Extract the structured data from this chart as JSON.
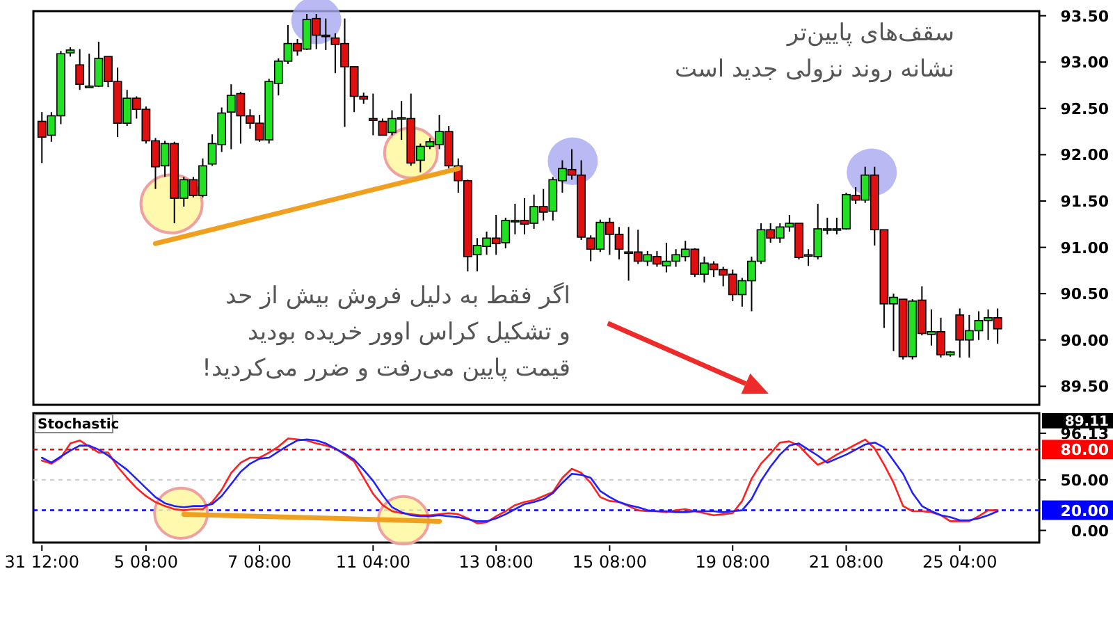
{
  "chart_data": [
    {
      "type": "candlestick",
      "categories": [
        null,
        null,
        null,
        null,
        null,
        null,
        null,
        null,
        null,
        null,
        null,
        null,
        null,
        null,
        null,
        null,
        null,
        null,
        null,
        null,
        null,
        null,
        null,
        null,
        null,
        null,
        null,
        null,
        null,
        null,
        null,
        null,
        null,
        null,
        null,
        null,
        null,
        null,
        null,
        null,
        null,
        null,
        null,
        null,
        null,
        null,
        null,
        null,
        null,
        null,
        null,
        null,
        null,
        null,
        null,
        null,
        null,
        null,
        null,
        null,
        null,
        null,
        null,
        null,
        null,
        null,
        null,
        null,
        null,
        null,
        null,
        null,
        null,
        null,
        null,
        null,
        null,
        null,
        null,
        null,
        null,
        null,
        null,
        null,
        null,
        null,
        null,
        null,
        null,
        null,
        null,
        null,
        null,
        null,
        null,
        null,
        null,
        null,
        null,
        null,
        null,
        null
      ],
      "ohlc": [
        [
          92.36,
          92.46,
          91.91,
          92.19
        ],
        [
          92.21,
          92.46,
          92.14,
          92.42
        ],
        [
          92.42,
          93.12,
          92.33,
          93.09
        ],
        [
          93.1,
          93.16,
          93.06,
          93.13
        ],
        [
          92.97,
          93.14,
          92.7,
          92.76
        ],
        [
          92.74,
          93.09,
          92.74,
          92.74
        ],
        [
          92.74,
          93.22,
          92.73,
          93.04
        ],
        [
          93.06,
          93.06,
          92.73,
          92.79
        ],
        [
          92.79,
          92.94,
          92.19,
          92.34
        ],
        [
          92.34,
          92.7,
          92.31,
          92.61
        ],
        [
          92.61,
          92.63,
          92.39,
          92.49
        ],
        [
          92.49,
          92.52,
          92.12,
          92.15
        ],
        [
          92.15,
          92.18,
          91.63,
          91.87
        ],
        [
          91.88,
          92.15,
          91.76,
          92.12
        ],
        [
          92.12,
          92.14,
          91.26,
          91.53
        ],
        [
          91.53,
          91.76,
          91.44,
          91.73
        ],
        [
          91.73,
          91.76,
          91.54,
          91.56
        ],
        [
          91.56,
          91.96,
          91.54,
          91.88
        ],
        [
          91.9,
          92.22,
          91.88,
          92.12
        ],
        [
          92.11,
          92.51,
          92.03,
          92.45
        ],
        [
          92.46,
          92.76,
          92.06,
          92.64
        ],
        [
          92.66,
          92.68,
          92.12,
          92.42
        ],
        [
          92.42,
          92.49,
          92.28,
          92.34
        ],
        [
          92.34,
          92.43,
          92.14,
          92.16
        ],
        [
          92.16,
          92.82,
          92.12,
          92.79
        ],
        [
          92.77,
          93.04,
          92.64,
          93.01
        ],
        [
          93.01,
          93.4,
          92.98,
          93.2
        ],
        [
          93.2,
          93.25,
          93.07,
          93.12
        ],
        [
          93.14,
          93.52,
          93.13,
          93.46
        ],
        [
          93.47,
          93.52,
          93.14,
          93.29
        ],
        [
          93.29,
          93.47,
          93.13,
          93.28
        ],
        [
          93.26,
          93.31,
          92.88,
          93.19
        ],
        [
          93.2,
          93.47,
          92.3,
          92.95
        ],
        [
          92.95,
          92.95,
          92.46,
          92.63
        ],
        [
          92.63,
          92.67,
          92.55,
          92.6
        ],
        [
          92.39,
          92.66,
          92.21,
          92.37
        ],
        [
          92.36,
          92.39,
          92.21,
          92.21
        ],
        [
          92.24,
          92.48,
          92.21,
          92.39
        ],
        [
          92.4,
          92.58,
          92.16,
          92.4
        ],
        [
          92.39,
          92.66,
          91.88,
          91.91
        ],
        [
          91.94,
          92.12,
          91.81,
          92.09
        ],
        [
          92.09,
          92.18,
          92.06,
          92.14
        ],
        [
          92.11,
          92.43,
          92.06,
          92.25
        ],
        [
          92.25,
          92.31,
          91.85,
          91.88
        ],
        [
          91.88,
          91.96,
          91.59,
          91.72
        ],
        [
          91.72,
          91.73,
          90.74,
          90.9
        ],
        [
          90.92,
          91.1,
          90.74,
          91.02
        ],
        [
          91.01,
          91.17,
          90.92,
          91.1
        ],
        [
          91.1,
          91.35,
          90.92,
          91.04
        ],
        [
          91.05,
          91.32,
          90.99,
          91.29
        ],
        [
          91.29,
          91.47,
          91.14,
          91.29
        ],
        [
          91.29,
          91.53,
          91.14,
          91.25
        ],
        [
          91.26,
          91.57,
          91.2,
          91.44
        ],
        [
          91.44,
          91.63,
          91.29,
          91.38
        ],
        [
          91.39,
          91.76,
          91.29,
          91.73
        ],
        [
          91.72,
          91.94,
          91.59,
          91.85
        ],
        [
          91.84,
          92.06,
          91.73,
          91.78
        ],
        [
          91.78,
          91.94,
          91.08,
          91.11
        ],
        [
          91.1,
          91.13,
          90.85,
          90.98
        ],
        [
          90.98,
          91.3,
          90.95,
          91.27
        ],
        [
          91.27,
          91.32,
          90.92,
          91.14
        ],
        [
          91.14,
          91.22,
          90.87,
          90.98
        ],
        [
          90.95,
          91.22,
          90.64,
          90.95
        ],
        [
          90.95,
          91.19,
          90.82,
          90.85
        ],
        [
          90.85,
          90.96,
          90.8,
          90.92
        ],
        [
          90.9,
          90.96,
          90.79,
          90.82
        ],
        [
          90.8,
          91.05,
          90.73,
          90.85
        ],
        [
          90.85,
          90.98,
          90.79,
          90.92
        ],
        [
          90.9,
          91.07,
          90.85,
          90.98
        ],
        [
          90.98,
          90.99,
          90.68,
          90.71
        ],
        [
          90.71,
          90.9,
          90.62,
          90.83
        ],
        [
          90.82,
          90.85,
          90.68,
          90.76
        ],
        [
          90.76,
          90.79,
          90.58,
          90.7
        ],
        [
          90.71,
          90.76,
          90.42,
          90.49
        ],
        [
          90.49,
          90.67,
          90.36,
          90.64
        ],
        [
          90.64,
          90.9,
          90.31,
          90.85
        ],
        [
          90.85,
          91.26,
          90.82,
          91.19
        ],
        [
          91.19,
          91.26,
          91.05,
          91.1
        ],
        [
          91.1,
          91.26,
          91.05,
          91.22
        ],
        [
          91.22,
          91.35,
          91.17,
          91.26
        ],
        [
          91.26,
          91.26,
          90.87,
          90.89
        ],
        [
          90.92,
          90.98,
          90.8,
          90.92
        ],
        [
          90.9,
          91.47,
          90.87,
          91.2
        ],
        [
          91.2,
          91.32,
          91.14,
          91.2
        ],
        [
          91.2,
          91.32,
          91.14,
          91.2
        ],
        [
          91.2,
          91.59,
          91.19,
          91.57
        ],
        [
          91.56,
          91.65,
          91.47,
          91.51
        ],
        [
          91.51,
          91.87,
          91.48,
          91.78
        ],
        [
          91.78,
          91.87,
          91.02,
          91.19
        ],
        [
          91.19,
          91.19,
          90.13,
          90.39
        ],
        [
          90.39,
          90.5,
          89.88,
          90.46
        ],
        [
          90.44,
          90.44,
          89.79,
          89.82
        ],
        [
          89.82,
          90.44,
          89.79,
          90.42
        ],
        [
          90.43,
          90.58,
          90.05,
          90.07
        ],
        [
          90.06,
          90.33,
          89.94,
          90.09
        ],
        [
          90.09,
          90.24,
          89.81,
          89.84
        ],
        [
          89.84,
          89.88,
          89.82,
          89.87
        ],
        [
          90.27,
          90.34,
          89.81,
          90.0
        ],
        [
          90.0,
          90.27,
          89.81,
          90.1
        ],
        [
          90.1,
          90.31,
          90.0,
          90.21
        ],
        [
          90.21,
          90.33,
          90.0,
          90.24
        ],
        [
          90.24,
          90.34,
          89.96,
          90.12
        ]
      ],
      "series": [
        {
          "type": "line",
          "color": "#f0a020",
          "values": [
            null,
            null,
            null,
            null,
            null,
            null,
            null,
            null,
            null,
            null,
            null,
            null,
            91.04,
            null,
            null,
            null,
            null,
            null,
            null,
            null,
            null,
            null,
            null,
            null,
            null,
            null,
            null,
            null,
            null,
            null,
            null,
            null,
            null,
            null,
            null,
            null,
            null,
            null,
            null,
            null,
            null,
            null,
            null,
            null,
            91.85,
            null,
            null,
            null,
            null,
            null,
            null,
            null,
            null,
            null,
            null,
            null,
            null,
            null,
            null,
            null,
            null,
            null,
            null,
            null,
            null,
            null,
            null,
            null,
            null,
            null,
            null,
            null,
            null,
            null,
            null,
            null,
            null,
            null,
            null,
            null,
            null,
            null,
            null,
            null,
            null,
            null,
            null,
            null,
            null,
            null,
            null,
            null,
            null,
            null,
            null,
            null,
            null,
            null,
            null,
            null,
            null,
            null
          ]
        }
      ],
      "ylim": [
        89.3,
        93.55
      ],
      "yticks": [
        {
          "value": 89.5,
          "label": "89.50"
        },
        {
          "value": 90,
          "label": "90.00"
        },
        {
          "value": 90.5,
          "label": "90.50"
        },
        {
          "value": 91,
          "label": "91.00"
        },
        {
          "value": 91.5,
          "label": "91.50"
        },
        {
          "value": 92,
          "label": "92.00"
        },
        {
          "value": 92.5,
          "label": "92.50"
        },
        {
          "value": 93,
          "label": "93.00"
        },
        {
          "value": 93.5,
          "label": "93.50"
        }
      ],
      "tick_labels": "y",
      "annotations": [
        "سقف‌های پایین‌تر\nنشانه روند نزولی جدید است",
        "اگر فقط به دلیل فروش بیش از حد\nو تشکیل کراس اوور خریده بودید\nقیمت پایین می‌رفت و ضرر می‌کردید!"
      ]
    },
    {
      "type": "line",
      "title": "Stochastic",
      "categories": [
        "31 12:00",
        null,
        null,
        null,
        null,
        null,
        null,
        null,
        null,
        null,
        null,
        "5 08:00",
        null,
        null,
        null,
        null,
        null,
        null,
        null,
        null,
        null,
        null,
        null,
        "7 08:00",
        null,
        null,
        null,
        null,
        null,
        null,
        null,
        null,
        null,
        null,
        null,
        "11 04:00",
        null,
        null,
        null,
        null,
        null,
        null,
        null,
        null,
        null,
        null,
        null,
        null,
        "13 08:00",
        null,
        null,
        null,
        null,
        null,
        null,
        null,
        null,
        null,
        null,
        null,
        "15 08:00",
        null,
        null,
        null,
        null,
        null,
        null,
        null,
        null,
        null,
        null,
        null,
        null,
        "19 08:00",
        null,
        null,
        null,
        null,
        null,
        null,
        null,
        null,
        null,
        null,
        null,
        "21 08:00",
        null,
        null,
        null,
        null,
        null,
        null,
        null,
        null,
        null,
        null,
        null,
        "25 04:00",
        null,
        null,
        null,
        null
      ],
      "series": [
        {
          "color": "#ff2020",
          "values": [
            69,
            66,
            72,
            86,
            89,
            83,
            77,
            77,
            63,
            52,
            42,
            34,
            28,
            24,
            21,
            20,
            21,
            21,
            28,
            40,
            57,
            67,
            72,
            72,
            77,
            83,
            91,
            90,
            89,
            86,
            84,
            81,
            75,
            68,
            52,
            36,
            25,
            19,
            17,
            16,
            15,
            15,
            16,
            17,
            16,
            12,
            7,
            8,
            14,
            19,
            25,
            28,
            30,
            34,
            38,
            52,
            61,
            57,
            47,
            33,
            29,
            28,
            24,
            20,
            19,
            19,
            18,
            20,
            21,
            19,
            17,
            15,
            16,
            17,
            29,
            51,
            66,
            76,
            87,
            88,
            84,
            74,
            65,
            69,
            75,
            80,
            85,
            90,
            81,
            65,
            47,
            24,
            19,
            19,
            18,
            15,
            9,
            9,
            9,
            14,
            20,
            20
          ]
        },
        {
          "color": "#2020ff",
          "values": [
            72,
            67,
            73,
            79,
            84,
            84,
            80,
            74,
            67,
            60,
            51,
            42,
            33,
            27,
            24,
            23,
            24,
            24,
            26,
            34,
            46,
            58,
            66,
            71,
            72,
            78,
            84,
            89,
            90,
            89,
            86,
            81,
            76,
            70,
            60,
            49,
            35,
            23,
            18,
            15,
            14,
            14,
            15,
            14,
            13,
            11,
            9,
            9,
            12,
            16,
            21,
            26,
            28,
            31,
            37,
            47,
            56,
            55,
            52,
            39,
            33,
            28,
            25,
            23,
            20,
            19,
            19,
            18,
            18,
            19,
            19,
            19,
            18,
            19,
            20,
            31,
            49,
            63,
            75,
            84,
            86,
            80,
            74,
            67,
            71,
            75,
            80,
            85,
            87,
            82,
            69,
            56,
            37,
            24,
            19,
            15,
            13,
            10,
            10,
            12,
            15,
            19
          ]
        },
        {
          "color": "#f0a020",
          "values": [
            null,
            null,
            null,
            null,
            null,
            null,
            null,
            null,
            null,
            null,
            null,
            null,
            null,
            null,
            null,
            16,
            null,
            null,
            null,
            null,
            null,
            null,
            null,
            null,
            null,
            null,
            null,
            null,
            null,
            null,
            null,
            null,
            null,
            null,
            null,
            null,
            null,
            null,
            null,
            null,
            null,
            null,
            9,
            null,
            null,
            null,
            null,
            null,
            null,
            null,
            null,
            null,
            null,
            null,
            null,
            null,
            null,
            null,
            null,
            null,
            null,
            null,
            null,
            null,
            null,
            null,
            null,
            null,
            null,
            null,
            null,
            null,
            null,
            null,
            null,
            null,
            null,
            null,
            null,
            null,
            null,
            null,
            null,
            null,
            null,
            null,
            null,
            null,
            null,
            null,
            null,
            null,
            null,
            null,
            null,
            null,
            null,
            null,
            null,
            null,
            null,
            null
          ]
        }
      ],
      "ylim": [
        -12,
        116
      ],
      "yticks": [
        {
          "value": 0,
          "label": "0.00"
        },
        {
          "value": 50,
          "label": "50.00"
        },
        {
          "value": 96.13,
          "label": "96.13"
        }
      ],
      "ref_lines": [
        {
          "axis": "y",
          "value": 80,
          "label": "80.00",
          "color": "#ff0000",
          "line_style": "dotted"
        },
        {
          "axis": "y",
          "value": 20,
          "label": "20.00",
          "color": "#0000ff",
          "line_style": "dotted"
        },
        {
          "axis": "y",
          "value": 50,
          "label": null,
          "color": "#d0d0d0",
          "line_style": "dotted"
        }
      ],
      "annotations": [
        "89.11"
      ]
    }
  ]
}
